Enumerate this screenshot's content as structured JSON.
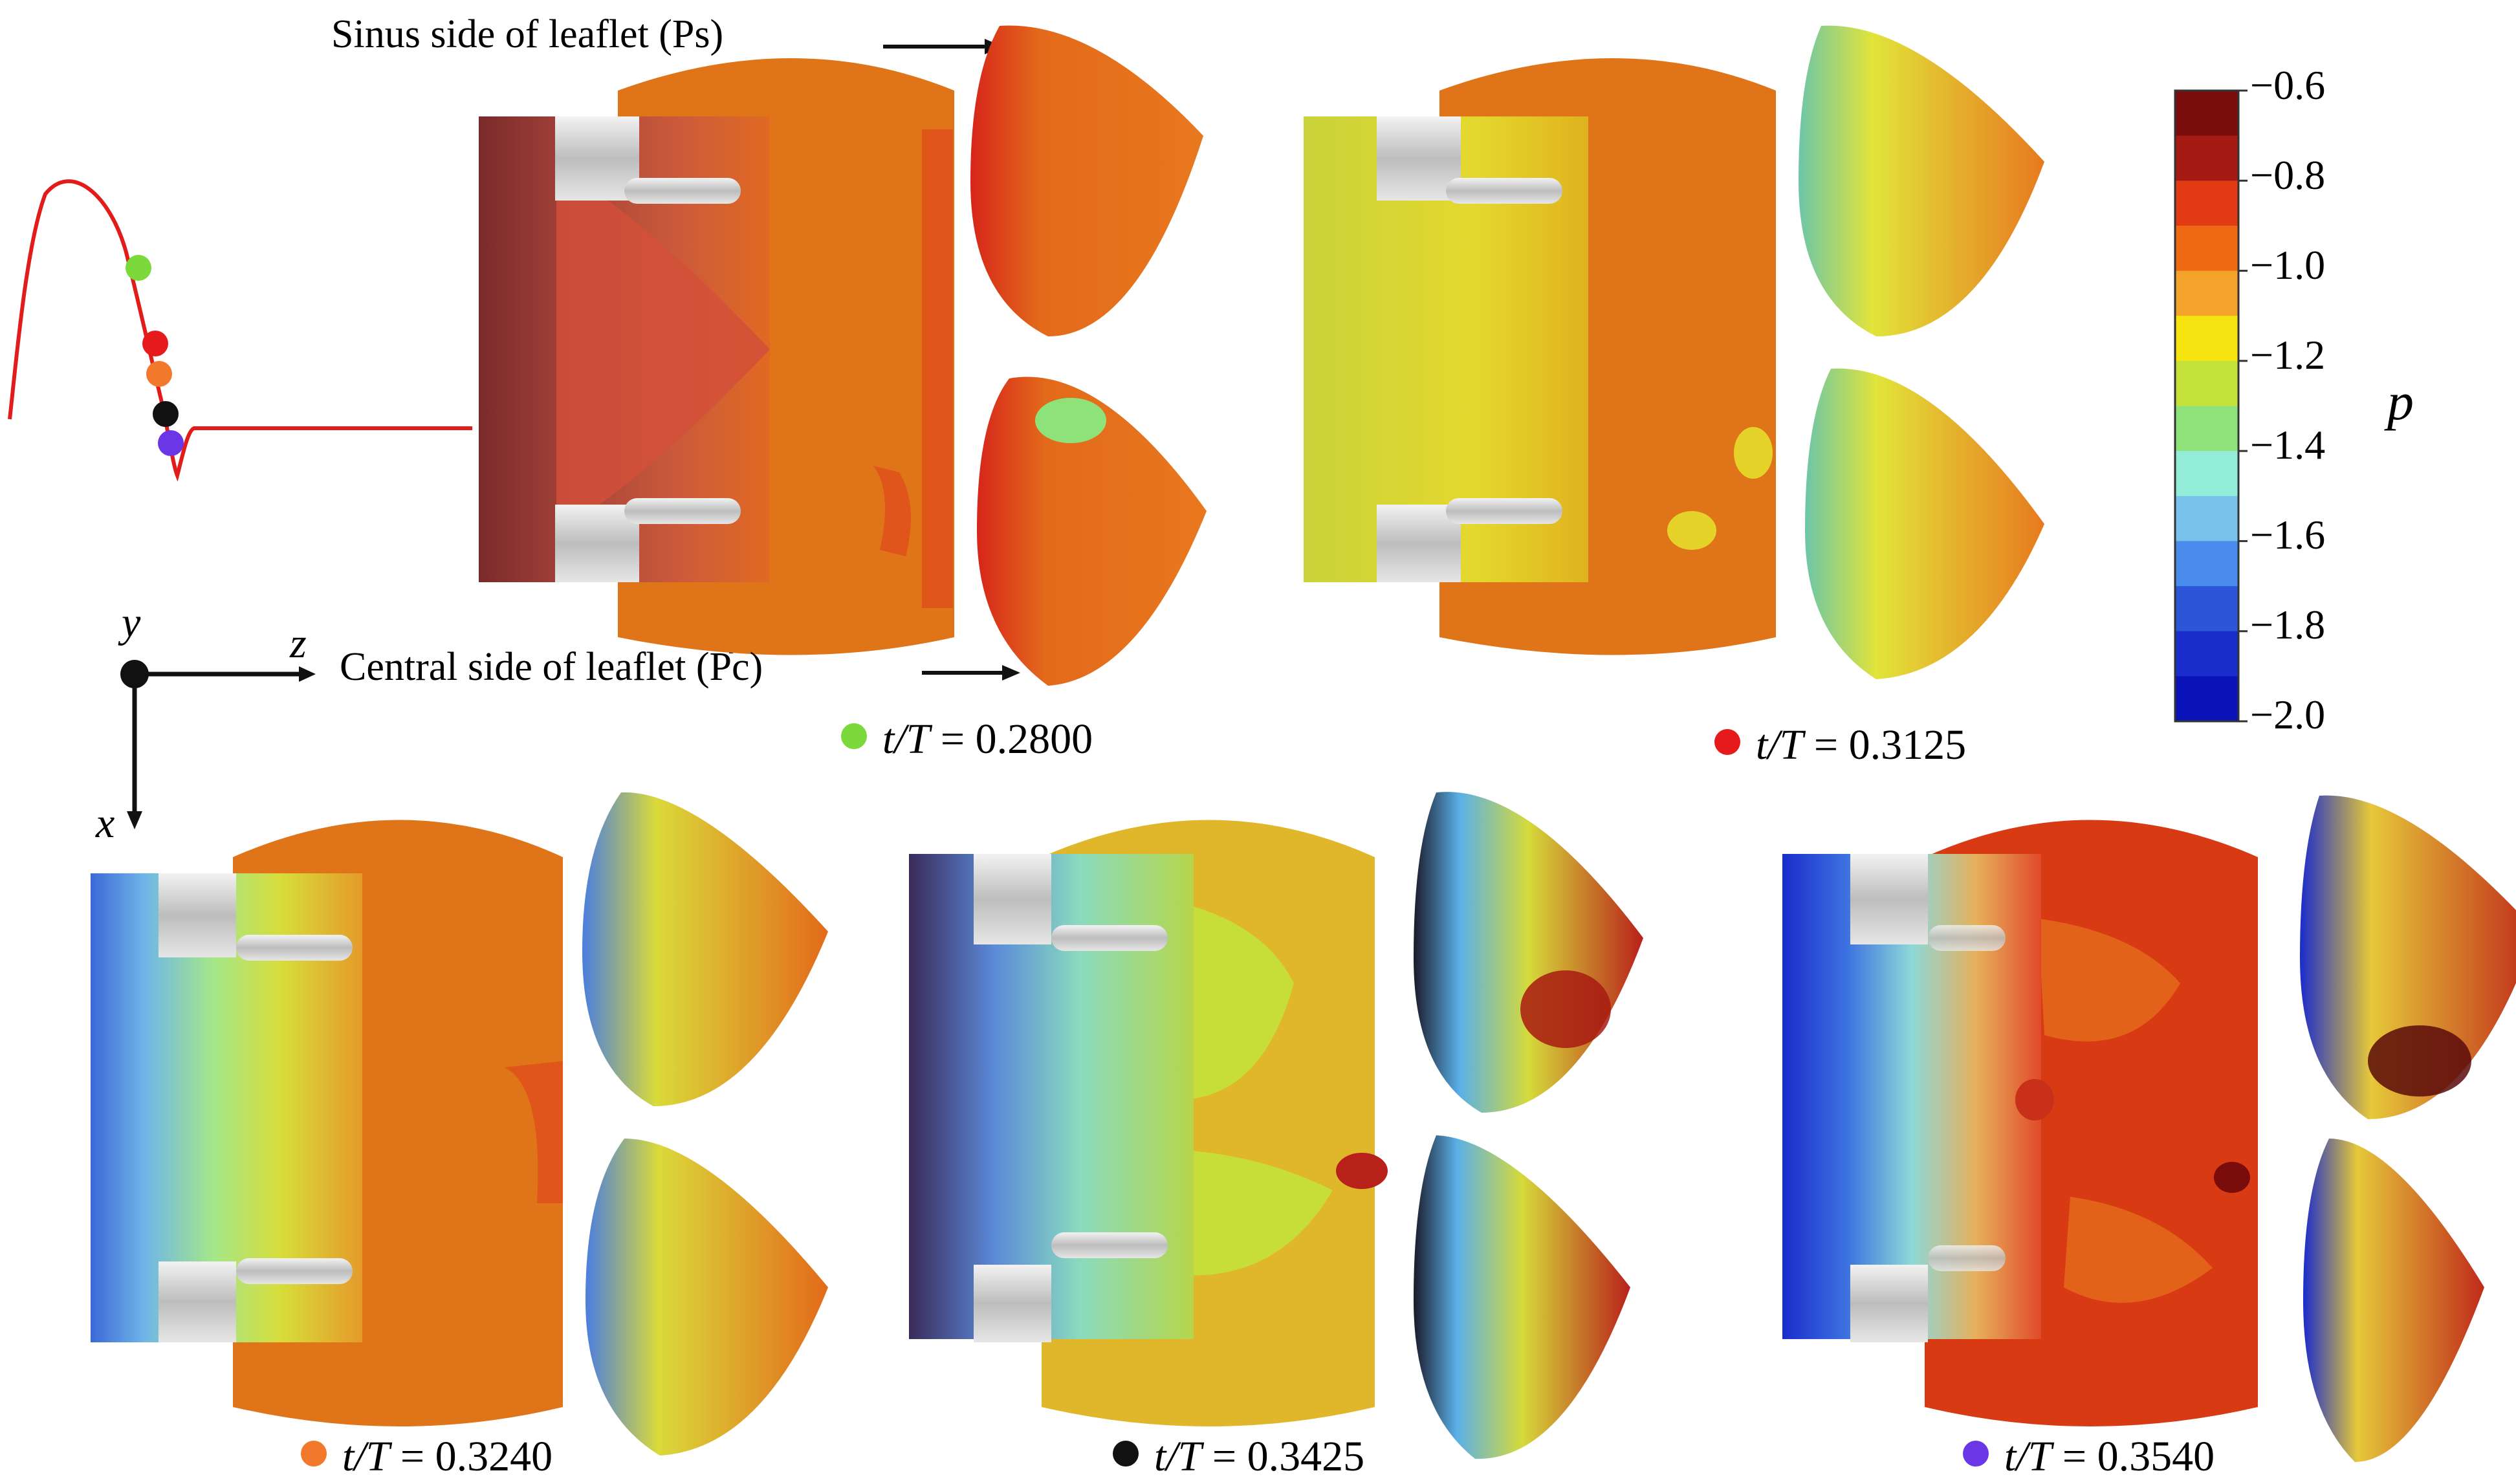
{
  "annotations": {
    "sinus": "Sinus side of leaflet (Ps)",
    "central": "Central side of leaflet (Pc)"
  },
  "axes": {
    "y": "y",
    "z": "z",
    "x": "x"
  },
  "colorbar": {
    "label": "p",
    "ticks": [
      "−0.6",
      "−0.8",
      "−1.0",
      "−1.2",
      "−1.4",
      "−1.6",
      "−1.8",
      "−2.0"
    ],
    "colors": [
      "#7a0c0c",
      "#a51a12",
      "#e23a12",
      "#ee6a12",
      "#f3a22a",
      "#f6e410",
      "#c4e23a",
      "#8fe27a",
      "#92ecd8",
      "#79c2ee",
      "#4a8cec",
      "#2d55d8",
      "#1a2ccc",
      "#0a12b8"
    ]
  },
  "panels": [
    {
      "id": "a",
      "time_label": "t/T",
      "time_eq": "= 0.2800",
      "marker_color": "#7bd93b"
    },
    {
      "id": "b",
      "time_label": "t/T",
      "time_eq": "= 0.3125",
      "marker_color": "#e6191b"
    },
    {
      "id": "c",
      "time_label": "t/T",
      "time_eq": "= 0.3240",
      "marker_color": "#f2792b"
    },
    {
      "id": "d",
      "time_label": "t/T",
      "time_eq": "= 0.3425",
      "marker_color": "#111111"
    },
    {
      "id": "e",
      "time_label": "t/T",
      "time_eq": "= 0.3540",
      "marker_color": "#6b36e6"
    }
  ]
}
